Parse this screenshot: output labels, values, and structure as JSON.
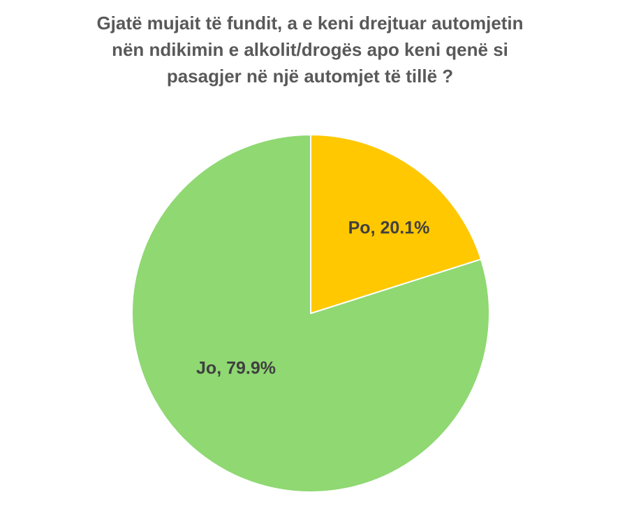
{
  "chart_data": {
    "type": "pie",
    "title_lines": [
      "Gjatë mujait të fundit, a e keni drejtuar automjetin",
      "nën ndikimin e alkolit/drogës apo keni qenë si",
      "pasagjer në një automjet të tillë ?"
    ],
    "categories": [
      "Po",
      "Jo"
    ],
    "values": [
      20.1,
      79.9
    ],
    "unit": "%",
    "data_labels": [
      "Po, 20.1%",
      "Jo, 79.9%"
    ],
    "colors": [
      "#FFC800",
      "#8FD872"
    ],
    "legend": "none"
  }
}
